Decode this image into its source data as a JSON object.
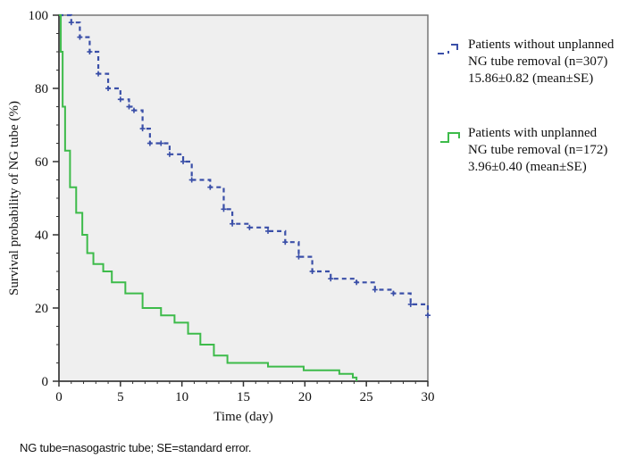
{
  "chart_data": {
    "type": "line",
    "subtype": "kaplan-meier",
    "title": "",
    "xlabel": "Time (day)",
    "ylabel": "Survival probability of NG tube (%)",
    "xlim": [
      0,
      30
    ],
    "ylim": [
      0,
      100
    ],
    "x_ticks": [
      0,
      5,
      10,
      15,
      20,
      25,
      30
    ],
    "y_ticks": [
      0,
      20,
      40,
      60,
      80,
      100
    ],
    "x_minor_step": 1,
    "y_minor_step": 5,
    "grid": false,
    "background": "#efefef",
    "legend_position": "right",
    "series": [
      {
        "name": "Patients without unplanned NG tube removal (n=307)",
        "legend_lines": [
          "Patients without unplanned",
          "NG tube removal (n=307)",
          "15.86±0.82 (mean±SE)"
        ],
        "color": "#3a4fa8",
        "style": "dashed-with-censor-marks",
        "points": [
          [
            0,
            100
          ],
          [
            1.0,
            98
          ],
          [
            1.7,
            94
          ],
          [
            2.5,
            90
          ],
          [
            3.2,
            84
          ],
          [
            4.0,
            80
          ],
          [
            5.0,
            77
          ],
          [
            5.7,
            75
          ],
          [
            6.1,
            74
          ],
          [
            6.8,
            69
          ],
          [
            7.4,
            65
          ],
          [
            8.3,
            65
          ],
          [
            9.0,
            62
          ],
          [
            10.1,
            60
          ],
          [
            10.8,
            55
          ],
          [
            12.3,
            53
          ],
          [
            13.4,
            47
          ],
          [
            14.1,
            43
          ],
          [
            15.5,
            42
          ],
          [
            17.0,
            41
          ],
          [
            18.4,
            38
          ],
          [
            19.5,
            34
          ],
          [
            20.6,
            30
          ],
          [
            22.1,
            28
          ],
          [
            24.2,
            27
          ],
          [
            25.7,
            25
          ],
          [
            27.2,
            24
          ],
          [
            28.6,
            21
          ],
          [
            30.0,
            18
          ]
        ]
      },
      {
        "name": "Patients with unplanned NG tube removal (n=172)",
        "legend_lines": [
          "Patients with unplanned",
          "NG tube removal (n=172)",
          "3.96±0.40 (mean±SE)"
        ],
        "color": "#3dbb4a",
        "style": "solid-step",
        "points": [
          [
            0,
            100
          ],
          [
            0.15,
            90
          ],
          [
            0.3,
            75
          ],
          [
            0.5,
            63
          ],
          [
            0.9,
            53
          ],
          [
            1.4,
            46
          ],
          [
            1.9,
            40
          ],
          [
            2.3,
            35
          ],
          [
            2.8,
            32
          ],
          [
            3.6,
            30
          ],
          [
            4.3,
            27
          ],
          [
            5.4,
            24
          ],
          [
            6.8,
            20
          ],
          [
            8.3,
            18
          ],
          [
            9.4,
            16
          ],
          [
            10.5,
            13
          ],
          [
            11.5,
            10
          ],
          [
            12.6,
            7
          ],
          [
            13.7,
            5
          ],
          [
            15.5,
            5
          ],
          [
            17.0,
            4
          ],
          [
            19.9,
            3
          ],
          [
            22.8,
            2
          ],
          [
            23.9,
            1
          ],
          [
            24.2,
            0
          ]
        ]
      }
    ]
  },
  "footnote": "NG tube=nasogastric tube; SE=standard error."
}
